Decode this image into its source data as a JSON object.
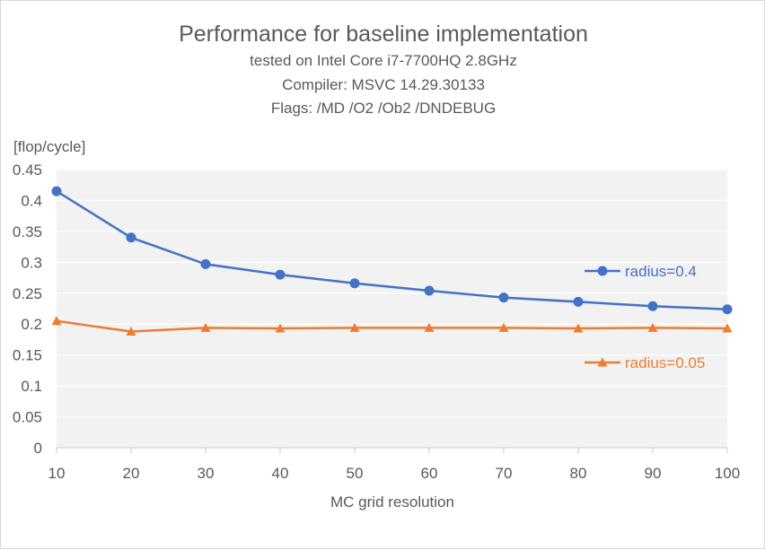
{
  "chart_data": {
    "type": "line",
    "title": "Performance for baseline implementation",
    "subtitle_lines": [
      "tested on Intel Core i7-7700HQ 2.8GHz",
      "Compiler: MSVC 14.29.30133",
      "Flags: /MD /O2 /Ob2 /DNDEBUG"
    ],
    "ylabel": "[flop/cycle]",
    "xlabel": "MC grid resolution",
    "x": [
      10,
      20,
      30,
      40,
      50,
      60,
      70,
      80,
      90,
      100
    ],
    "x_tick_labels": [
      "10",
      "20",
      "30",
      "40",
      "50",
      "60",
      "70",
      "80",
      "90",
      "100"
    ],
    "ylim": [
      0,
      0.45
    ],
    "y_ticks": [
      0,
      0.05,
      0.1,
      0.15,
      0.2,
      0.25,
      0.3,
      0.35,
      0.4,
      0.45
    ],
    "y_tick_labels": [
      "0",
      "0.05",
      "0.1",
      "0.15",
      "0.2",
      "0.25",
      "0.3",
      "0.35",
      "0.4",
      "0.45"
    ],
    "grid": true,
    "legend_position": "right",
    "series": [
      {
        "name": "radius=0.4",
        "color": "#4472c4",
        "marker": "circle",
        "values": [
          0.415,
          0.34,
          0.297,
          0.28,
          0.266,
          0.254,
          0.243,
          0.236,
          0.229,
          0.224
        ]
      },
      {
        "name": "radius=0.05",
        "color": "#ed7d31",
        "marker": "triangle",
        "values": [
          0.205,
          0.188,
          0.194,
          0.193,
          0.194,
          0.194,
          0.194,
          0.193,
          0.194,
          0.193
        ]
      }
    ]
  }
}
